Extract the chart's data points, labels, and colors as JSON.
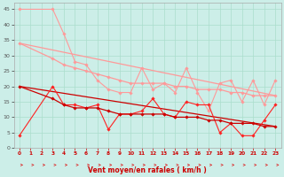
{
  "xlabel": "Vent moyen/en rafales ( km/h )",
  "xlim": [
    -0.5,
    23.5
  ],
  "ylim": [
    0,
    47
  ],
  "yticks": [
    0,
    5,
    10,
    15,
    20,
    25,
    30,
    35,
    40,
    45
  ],
  "xticks": [
    0,
    1,
    2,
    3,
    4,
    5,
    6,
    7,
    8,
    9,
    10,
    11,
    12,
    13,
    14,
    15,
    16,
    17,
    18,
    19,
    20,
    21,
    22,
    23
  ],
  "bg_color": "#cceee8",
  "grid_color": "#aaddcc",
  "series": [
    {
      "x": [
        0,
        3,
        4,
        5,
        6,
        7,
        8,
        9,
        10,
        11,
        12,
        13,
        14,
        15,
        16,
        17,
        18,
        19,
        20,
        21,
        22,
        23
      ],
      "y": [
        45,
        45,
        37,
        28,
        27,
        22,
        19,
        18,
        18,
        26,
        19,
        21,
        18,
        26,
        18,
        12,
        21,
        22,
        15,
        22,
        14,
        22
      ],
      "color": "#ff9999",
      "lw": 0.8,
      "marker": "D",
      "ms": 1.8
    },
    {
      "x": [
        0,
        3,
        4,
        5,
        6,
        7,
        8,
        9,
        10,
        11,
        12,
        13,
        14,
        15,
        16,
        17,
        18,
        19,
        20,
        21,
        22,
        23
      ],
      "y": [
        34,
        29,
        27,
        26,
        25,
        24,
        23,
        22,
        21,
        21,
        21,
        21,
        20,
        20,
        19,
        19,
        19,
        18,
        18,
        17,
        17,
        17
      ],
      "color": "#ff9999",
      "lw": 0.9,
      "marker": "D",
      "ms": 1.8
    },
    {
      "x": [
        0,
        23
      ],
      "y": [
        34,
        17
      ],
      "color": "#ff9999",
      "lw": 0.9,
      "marker": null,
      "ms": 0
    },
    {
      "x": [
        0,
        3,
        4,
        5,
        6,
        7,
        8,
        9,
        10,
        11,
        12,
        13,
        14,
        15,
        16,
        17,
        18,
        19,
        20,
        21,
        22,
        23
      ],
      "y": [
        4,
        20,
        14,
        14,
        13,
        14,
        6,
        11,
        11,
        12,
        16,
        11,
        10,
        15,
        14,
        14,
        5,
        8,
        4,
        4,
        9,
        14
      ],
      "color": "#ff2222",
      "lw": 0.8,
      "marker": "D",
      "ms": 1.8
    },
    {
      "x": [
        0,
        3,
        4,
        5,
        6,
        7,
        8,
        9,
        10,
        11,
        12,
        13,
        14,
        15,
        16,
        17,
        18,
        19,
        20,
        21,
        22,
        23
      ],
      "y": [
        20,
        16,
        14,
        13,
        13,
        13,
        12,
        11,
        11,
        11,
        11,
        11,
        10,
        10,
        10,
        9,
        9,
        8,
        8,
        8,
        7,
        7
      ],
      "color": "#cc0000",
      "lw": 0.9,
      "marker": "D",
      "ms": 1.8
    },
    {
      "x": [
        0,
        23
      ],
      "y": [
        20,
        7
      ],
      "color": "#cc0000",
      "lw": 0.9,
      "marker": null,
      "ms": 0
    }
  ],
  "arrow_color": "#dd2222",
  "arrow_xpositions": [
    0,
    1,
    2,
    3,
    4,
    5,
    6,
    7,
    8,
    9,
    10,
    11,
    12,
    13,
    14,
    15,
    16,
    17,
    18,
    19,
    20,
    21,
    22,
    23
  ]
}
